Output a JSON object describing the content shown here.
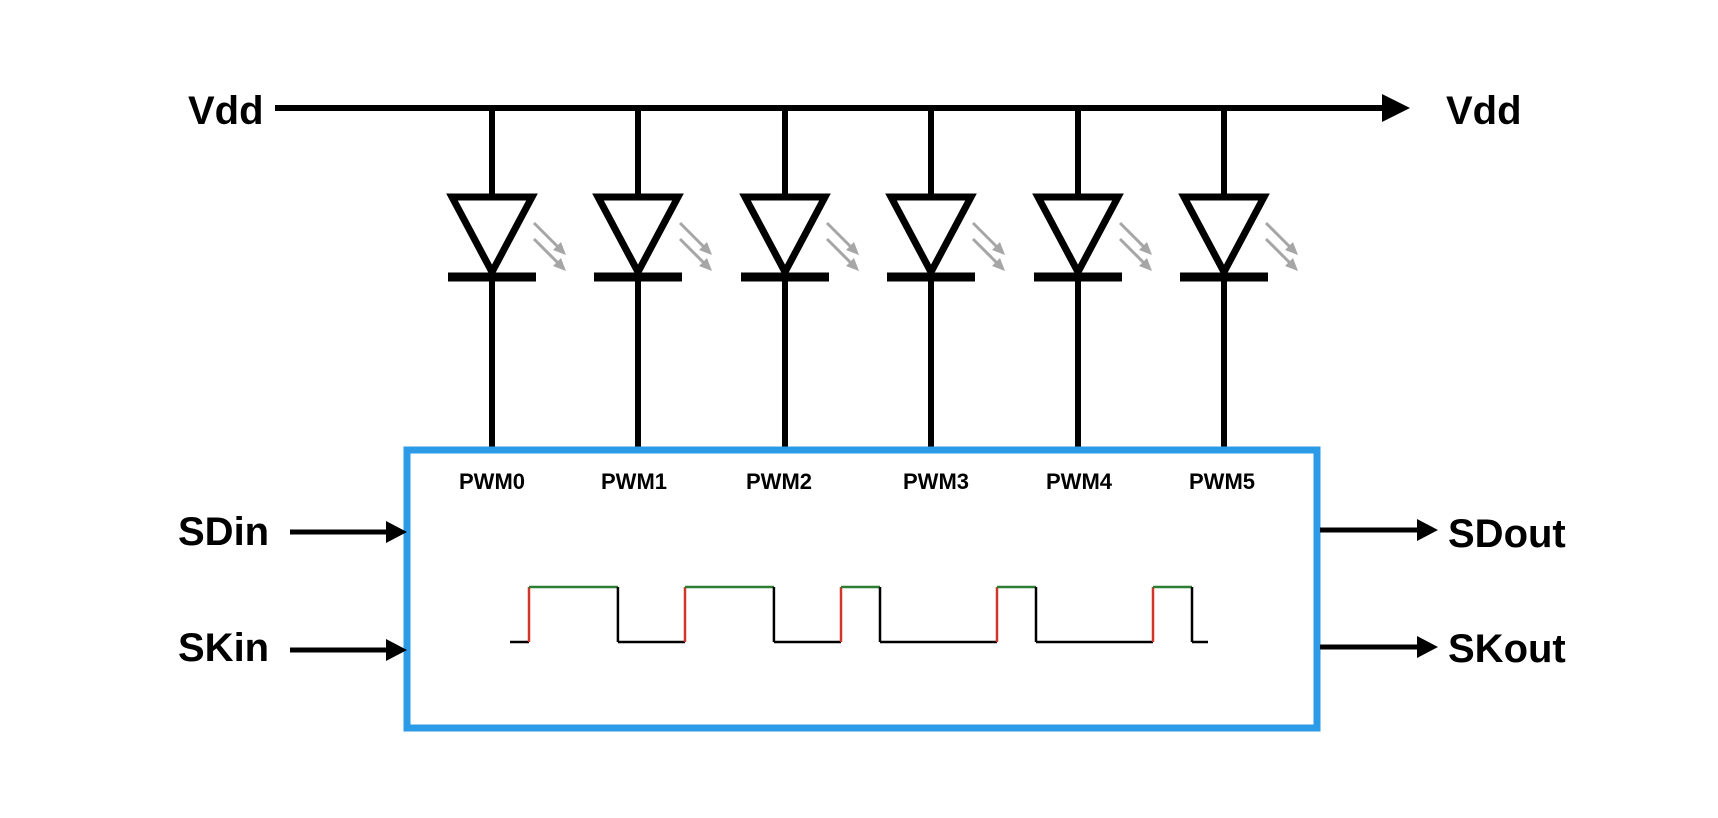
{
  "colors": {
    "wire": "#000000",
    "chip_border": "#2b9be8",
    "emission": "#a6a6a6",
    "edge_rising": "#d0372b",
    "level_high": "#2e7d32",
    "level_low": "#000000"
  },
  "rail": {
    "left_label": "Vdd",
    "right_label": "Vdd"
  },
  "leds": [
    {
      "pin_label": "PWM0"
    },
    {
      "pin_label": "PWM1"
    },
    {
      "pin_label": "PWM2"
    },
    {
      "pin_label": "PWM3"
    },
    {
      "pin_label": "PWM4"
    },
    {
      "pin_label": "PWM5"
    }
  ],
  "inputs": {
    "data": "SDin",
    "clock": "SKin"
  },
  "outputs": {
    "data": "SDout",
    "clock": "SKout"
  },
  "waveform": {
    "pulses": [
      {
        "on_fraction": 0.57
      },
      {
        "on_fraction": 0.57
      },
      {
        "on_fraction": 0.25
      },
      {
        "on_fraction": 0.25
      },
      {
        "on_fraction": 0.25
      }
    ]
  }
}
